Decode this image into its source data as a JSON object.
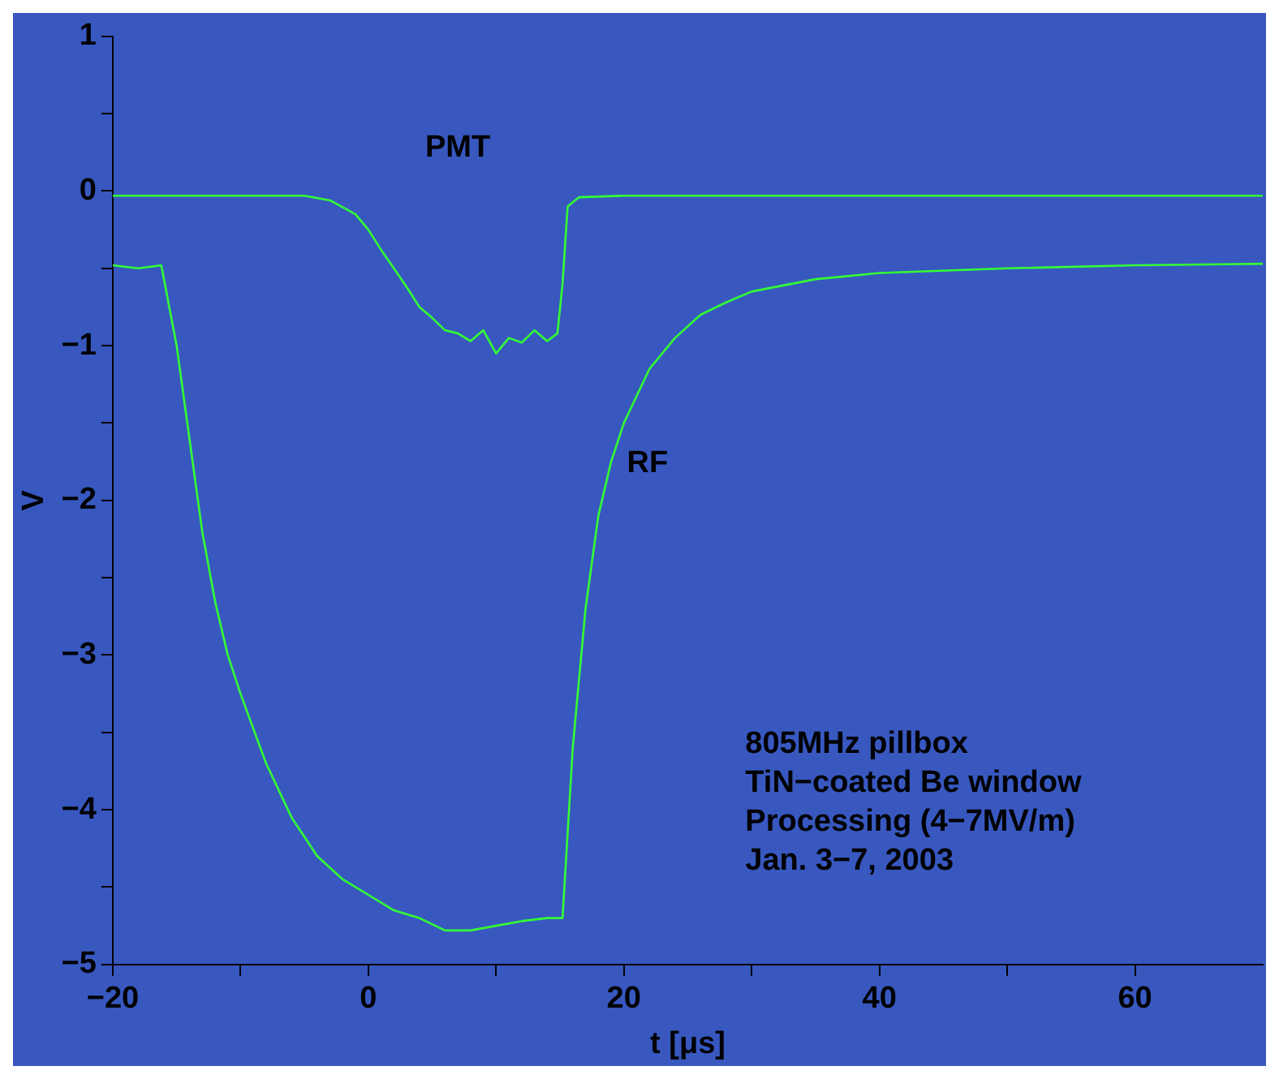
{
  "chart_data": {
    "type": "line",
    "xlabel": "t [μs]",
    "ylabel": "V",
    "xlim": [
      -20,
      70
    ],
    "ylim": [
      -5,
      1
    ],
    "xticks": [
      {
        "value": -20,
        "label": "−20"
      },
      {
        "value": -10,
        "label": null
      },
      0,
      {
        "value": 10,
        "label": null
      },
      20,
      {
        "value": 30,
        "label": null
      },
      40,
      {
        "value": 50,
        "label": null
      },
      60
    ],
    "yticks": [
      {
        "value": -5,
        "label": "−5"
      },
      {
        "value": -4.5,
        "label": null
      },
      {
        "value": -4,
        "label": "−4"
      },
      {
        "value": -3.5,
        "label": null
      },
      {
        "value": -3,
        "label": "−3"
      },
      {
        "value": -2.5,
        "label": null
      },
      {
        "value": -2,
        "label": "−2"
      },
      {
        "value": -1.5,
        "label": null
      },
      {
        "value": -1,
        "label": "−1"
      },
      {
        "value": -0.5,
        "label": null
      },
      0,
      {
        "value": 0.5,
        "label": null
      },
      1
    ],
    "grid": false,
    "legend": false,
    "marker": "none",
    "line_style": "solid",
    "series": [
      {
        "name": "PMT",
        "color": "#33ff33",
        "x": [
          -20,
          -10,
          -5,
          -3,
          -1,
          0,
          1,
          2,
          3,
          4,
          5,
          6,
          7,
          8,
          9,
          10,
          11,
          12,
          13,
          14,
          14.8,
          15.2,
          15.6,
          16.5,
          20,
          40,
          70
        ],
        "values": [
          -0.03,
          -0.03,
          -0.03,
          -0.06,
          -0.15,
          -0.25,
          -0.38,
          -0.5,
          -0.62,
          -0.75,
          -0.82,
          -0.9,
          -0.92,
          -0.97,
          -0.9,
          -1.05,
          -0.95,
          -0.98,
          -0.9,
          -0.97,
          -0.92,
          -0.6,
          -0.1,
          -0.04,
          -0.03,
          -0.03,
          -0.03
        ]
      },
      {
        "name": "RF",
        "color": "#33ff33",
        "x": [
          -20,
          -18,
          -16.2,
          -15,
          -14,
          -13,
          -12,
          -11,
          -10,
          -8,
          -6,
          -4,
          -2,
          0,
          2,
          4,
          6,
          8,
          10,
          12,
          14,
          15.2,
          16,
          17,
          18,
          19,
          20,
          22,
          24,
          26,
          28,
          30,
          35,
          40,
          50,
          60,
          70
        ],
        "values": [
          -0.48,
          -0.5,
          -0.48,
          -1.0,
          -1.6,
          -2.2,
          -2.65,
          -3.0,
          -3.25,
          -3.7,
          -4.05,
          -4.3,
          -4.45,
          -4.55,
          -4.65,
          -4.7,
          -4.78,
          -4.78,
          -4.75,
          -4.72,
          -4.7,
          -4.7,
          -3.6,
          -2.7,
          -2.1,
          -1.75,
          -1.5,
          -1.15,
          -0.95,
          -0.8,
          -0.72,
          -0.65,
          -0.57,
          -0.53,
          -0.5,
          -0.48,
          -0.47
        ]
      }
    ],
    "annotations": [
      "805MHz pillbox",
      "TiN−coated Be window",
      "Processing (4−7MV/m)",
      "Jan. 3−7, 2003"
    ]
  }
}
